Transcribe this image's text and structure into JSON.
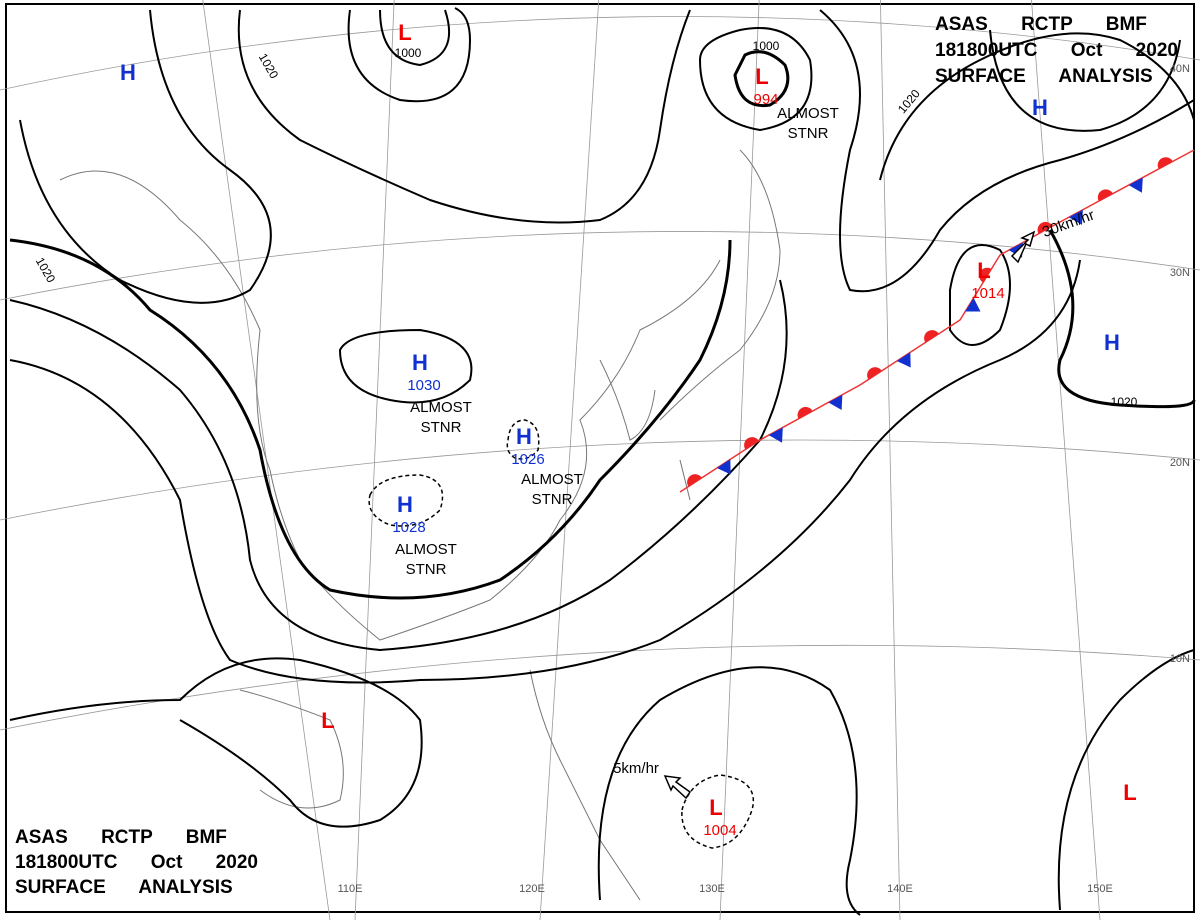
{
  "header_top": {
    "line1": "ASAS RCTP BMF",
    "line2": "181800UTC Oct 2020",
    "line3": "SURFACE ANALYSIS"
  },
  "header_bottom": {
    "line1": "ASAS RCTP BMF",
    "line2": "181800UTC Oct 2020",
    "line3": "SURFACE ANALYSIS"
  },
  "pressure_centers": [
    {
      "label": "H"
    },
    {
      "label": "H"
    },
    {
      "label": "H"
    },
    {
      "label": "H",
      "value": "1030"
    },
    {
      "label": "H",
      "value": "1026"
    },
    {
      "label": "H",
      "value": "1028"
    },
    {
      "label": "L"
    },
    {
      "label": "L",
      "value": "994"
    },
    {
      "label": "L",
      "value": "1014"
    },
    {
      "label": "L"
    },
    {
      "label": "L",
      "value": "1004"
    },
    {
      "label": "L"
    }
  ],
  "isobar_labels": [
    "1000",
    "1000",
    "1020",
    "1020",
    "1020",
    "1020"
  ],
  "notes": [
    "ALMOST STNR",
    "ALMOST STNR",
    "ALMOST STNR",
    "ALMOST STNR"
  ],
  "motions": [
    "30km/hr",
    "5km/hr"
  ],
  "longitudes": [
    "110E",
    "120E",
    "130E",
    "140E",
    "150E"
  ],
  "latitudes": [
    "40N",
    "30N",
    "20N",
    "10N"
  ]
}
